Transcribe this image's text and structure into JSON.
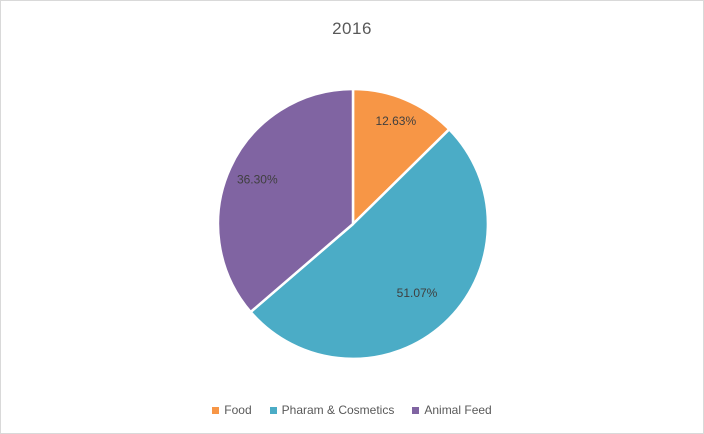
{
  "frame": {
    "background_color": "#FFFFFF",
    "border_color": "#D9D9D9"
  },
  "chart_data": {
    "type": "pie",
    "title": "2016",
    "title_color": "#595959",
    "legend_position": "bottom",
    "legend_text_color": "#595959",
    "data_label_color": "#3F3F3F",
    "slice_border_color": "#FFFFFF",
    "start_angle_deg": 0,
    "direction": "clockwise",
    "slices": [
      {
        "name": "Food",
        "value": 12.63,
        "label": "12.63%",
        "color": "#F79646",
        "label_r": 0.82
      },
      {
        "name": "Pharam & Cosmetics",
        "value": 51.07,
        "label": "51.07%",
        "color": "#4BACC6",
        "label_r": 0.7
      },
      {
        "name": "Animal Feed",
        "value": 36.3,
        "label": "36.30%",
        "color": "#8064A2",
        "label_r": 0.78
      }
    ]
  }
}
